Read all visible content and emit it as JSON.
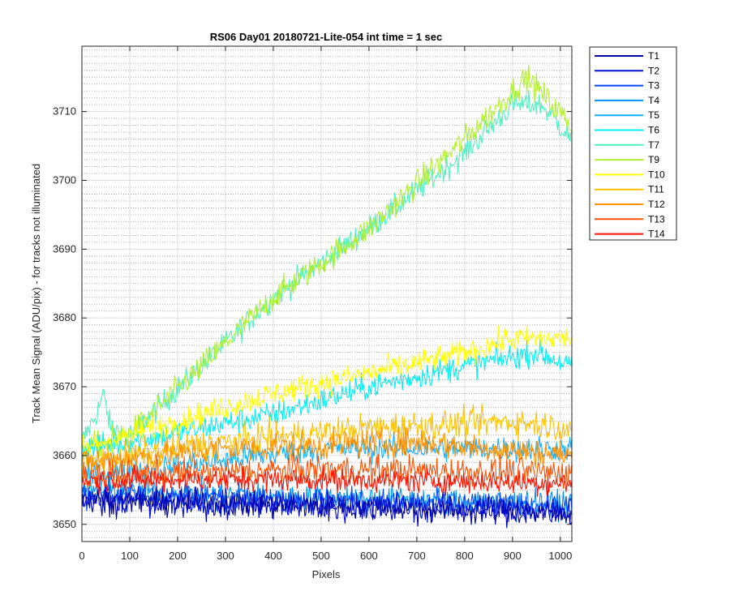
{
  "chart_data": {
    "type": "line",
    "title": "RS06 Day01 20180721-Lite-054 int time = 1 sec",
    "xlabel": "Pixels",
    "ylabel": "Track Mean Signal (ADU/pix) - for tracks not illuminated",
    "xlim": [
      0,
      1024
    ],
    "ylim": [
      3647.5,
      3719.5
    ],
    "xticks": [
      0,
      100,
      200,
      300,
      400,
      500,
      600,
      700,
      800,
      900,
      1000
    ],
    "yticks": [
      3650,
      3660,
      3670,
      3680,
      3690,
      3700,
      3710
    ],
    "grid": "major solid, minor dotted",
    "legend_position": "outside-top-right",
    "series": [
      {
        "name": "T1",
        "color": "#0000a8",
        "profile": [
          [
            0,
            3653.5
          ],
          [
            1024,
            3651.5
          ]
        ],
        "noise": 1.4
      },
      {
        "name": "T2",
        "color": "#0010d8",
        "profile": [
          [
            0,
            3653.5
          ],
          [
            1024,
            3652
          ]
        ],
        "noise": 1.4
      },
      {
        "name": "T3",
        "color": "#0048ff",
        "profile": [
          [
            0,
            3654.5
          ],
          [
            1024,
            3652.5
          ]
        ],
        "noise": 1.3
      },
      {
        "name": "T4",
        "color": "#0090ff",
        "profile": [
          [
            0,
            3655
          ],
          [
            1024,
            3653
          ]
        ],
        "noise": 1.3
      },
      {
        "name": "T5",
        "color": "#10b0ff",
        "profile": [
          [
            0,
            3657
          ],
          [
            500,
            3661
          ],
          [
            1024,
            3661
          ]
        ],
        "noise": 1.3
      },
      {
        "name": "T6",
        "color": "#00f0f0",
        "profile": [
          [
            0,
            3661
          ],
          [
            100,
            3662
          ],
          [
            400,
            3666
          ],
          [
            600,
            3670
          ],
          [
            800,
            3673
          ],
          [
            950,
            3675
          ],
          [
            1024,
            3673
          ]
        ],
        "noise": 1.3
      },
      {
        "name": "T7",
        "color": "#50f0c0",
        "profile": [
          [
            0,
            3662
          ],
          [
            30,
            3666
          ],
          [
            45,
            3669
          ],
          [
            60,
            3664
          ],
          [
            100,
            3663
          ],
          [
            400,
            3683
          ],
          [
            600,
            3693
          ],
          [
            800,
            3704
          ],
          [
            900,
            3711
          ],
          [
            960,
            3711
          ],
          [
            1024,
            3706
          ]
        ],
        "noise": 1.3
      },
      {
        "name": "T9",
        "color": "#b0f030",
        "profile": [
          [
            0,
            3661
          ],
          [
            100,
            3663
          ],
          [
            400,
            3683
          ],
          [
            600,
            3693
          ],
          [
            800,
            3706
          ],
          [
            930,
            3715
          ],
          [
            1024,
            3708
          ]
        ],
        "noise": 1.4
      },
      {
        "name": "T10",
        "color": "#ffff00",
        "profile": [
          [
            0,
            3661
          ],
          [
            100,
            3663
          ],
          [
            400,
            3669
          ],
          [
            600,
            3672
          ],
          [
            800,
            3675
          ],
          [
            900,
            3677
          ],
          [
            1024,
            3677
          ]
        ],
        "noise": 1.3
      },
      {
        "name": "T11",
        "color": "#ffc000",
        "profile": [
          [
            0,
            3659
          ],
          [
            300,
            3662
          ],
          [
            600,
            3664
          ],
          [
            900,
            3665
          ],
          [
            1024,
            3664
          ]
        ],
        "noise": 1.5
      },
      {
        "name": "T12",
        "color": "#ff9000",
        "profile": [
          [
            0,
            3659
          ],
          [
            300,
            3661
          ],
          [
            700,
            3662
          ],
          [
            1024,
            3660
          ]
        ],
        "noise": 1.5
      },
      {
        "name": "T13",
        "color": "#ff5000",
        "profile": [
          [
            0,
            3657
          ],
          [
            500,
            3658
          ],
          [
            1024,
            3657.5
          ]
        ],
        "noise": 1.5
      },
      {
        "name": "T14",
        "color": "#ff1000",
        "profile": [
          [
            0,
            3656.5
          ],
          [
            500,
            3656.5
          ],
          [
            1024,
            3656
          ]
        ],
        "noise": 1.2
      }
    ]
  }
}
